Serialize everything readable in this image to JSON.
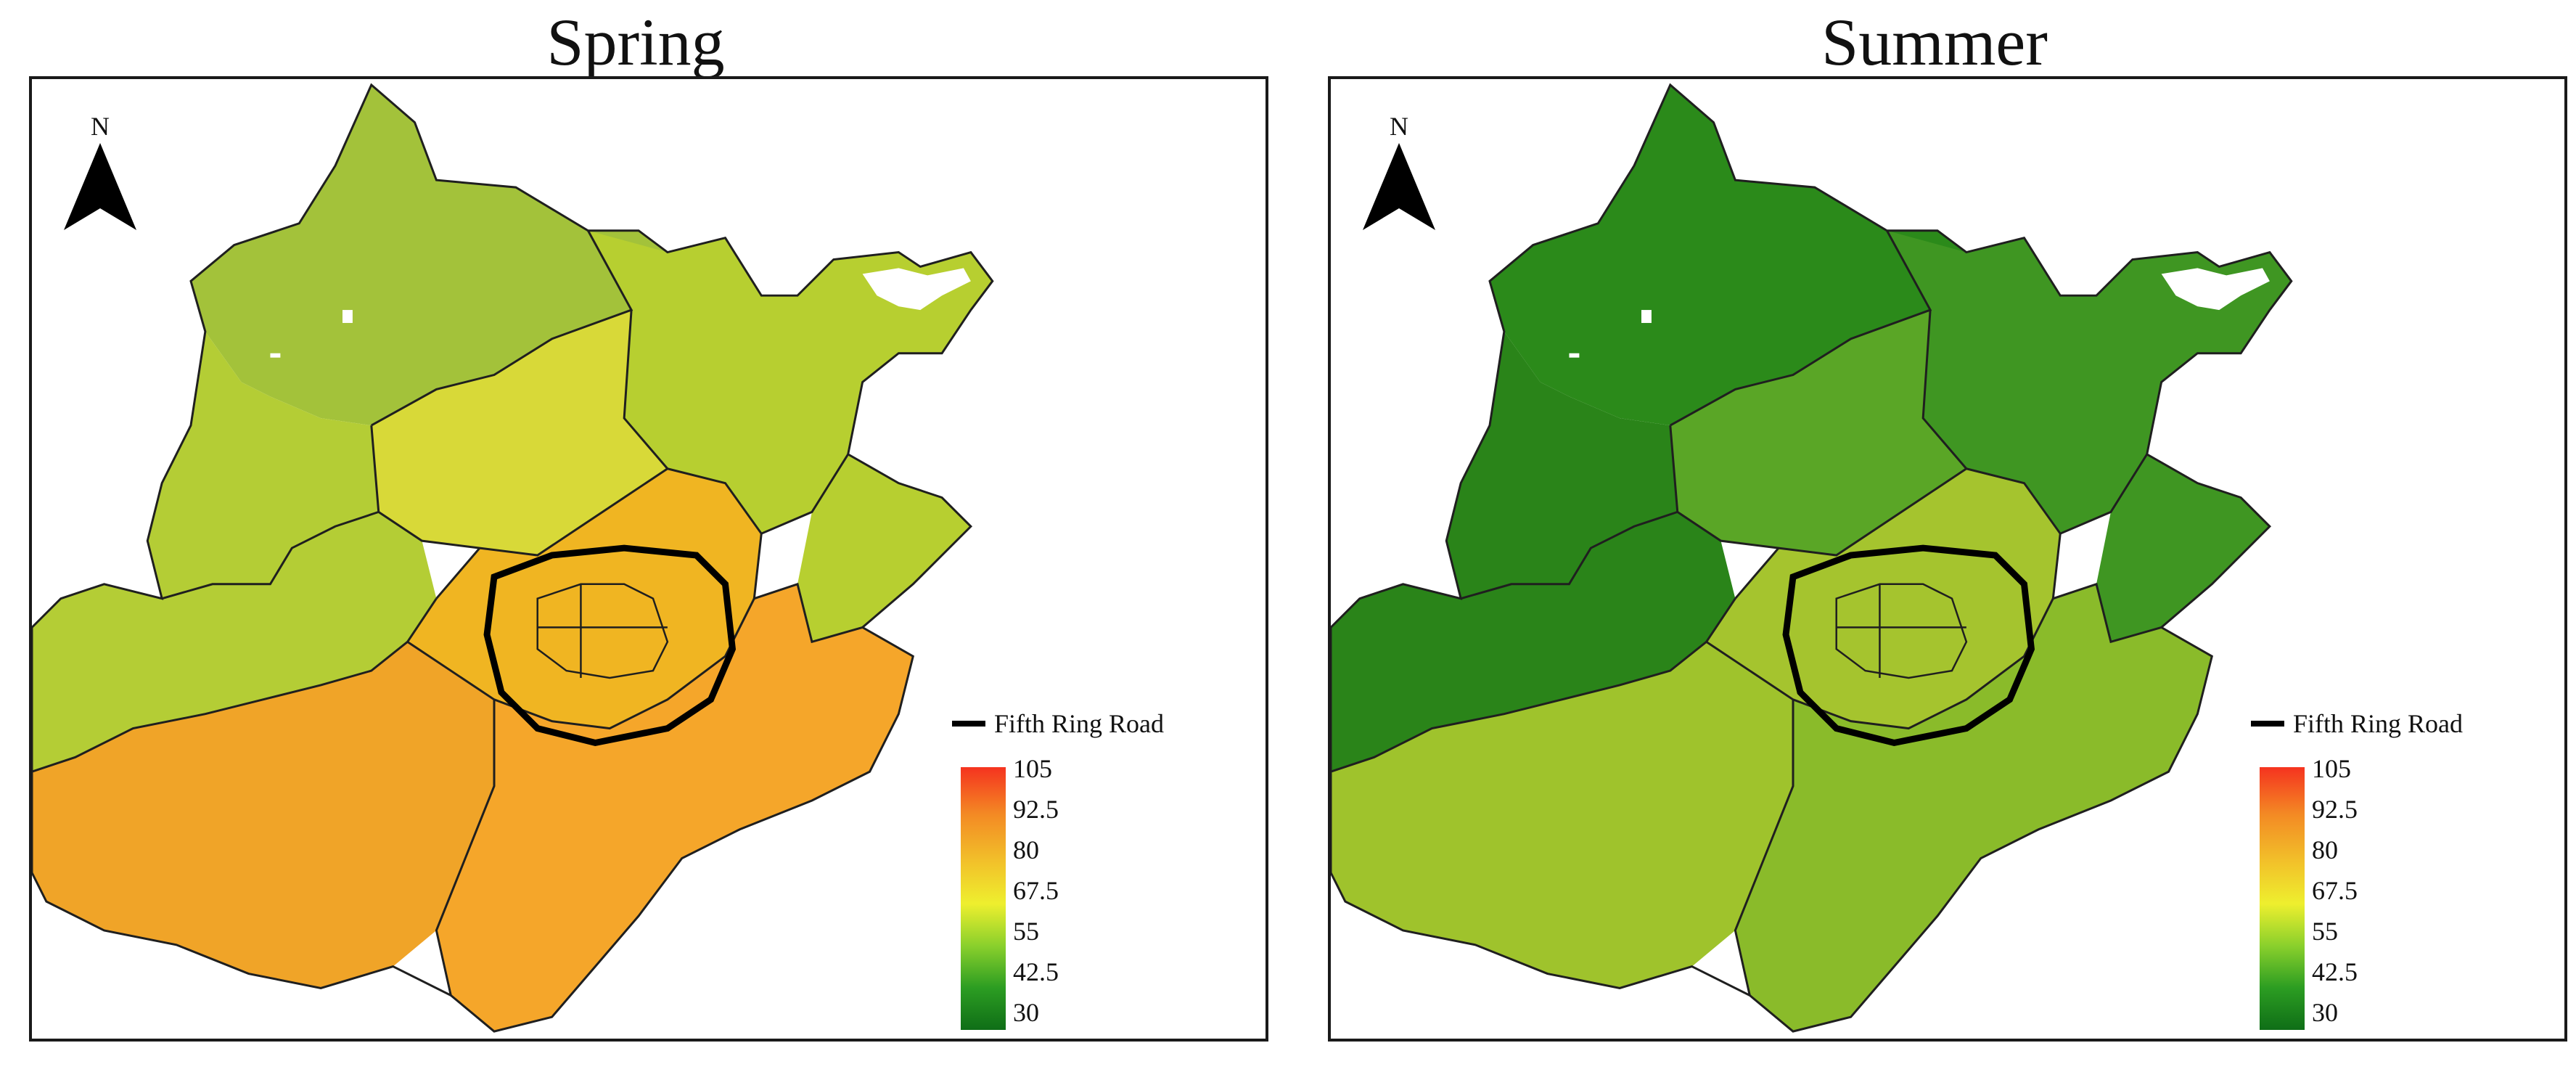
{
  "panels": [
    {
      "title": "Spring",
      "north_label": "N",
      "legend_line_label": "Fifth Ring Road",
      "palette": {
        "north": "#a3c23a",
        "northeast": "#b7cf30",
        "central_north": "#d8d938",
        "west": "#b4cd35",
        "urban": "#f0b522",
        "south": "#f0a428",
        "far_south": "#f5a62a"
      }
    },
    {
      "title": "Summer",
      "north_label": "N",
      "legend_line_label": "Fifth Ring Road",
      "palette": {
        "north": "#2b8a1a",
        "northeast": "#3f9622",
        "central_north": "#5aa626",
        "west": "#2a8419",
        "urban": "#a5c42e",
        "south": "#9fc32c",
        "far_south": "#8abb2a"
      }
    }
  ],
  "legend": {
    "ticks": [
      "105",
      "92.5",
      "80",
      "67.5",
      "55",
      "42.5",
      "30"
    ],
    "min": 30,
    "max": 105
  }
}
